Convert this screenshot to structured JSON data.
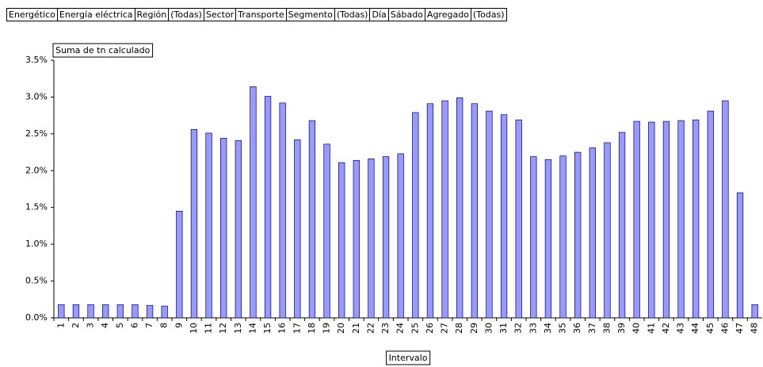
{
  "filters": [
    {
      "field": "Energético",
      "value": "Energía eléctrica"
    },
    {
      "field": "Región",
      "value": "(Todas)"
    },
    {
      "field": "Sector",
      "value": "Transporte"
    },
    {
      "field": "Segmento",
      "value": "(Todas)"
    },
    {
      "field": "Día",
      "value": "Sábado"
    },
    {
      "field": "Agregado",
      "value": "(Todas)"
    }
  ],
  "chart_data": {
    "type": "bar",
    "series_label": "Suma de tn calculado",
    "x_label": "Intervalo",
    "categories": [
      "1",
      "2",
      "3",
      "4",
      "5",
      "6",
      "7",
      "8",
      "9",
      "10",
      "11",
      "12",
      "13",
      "14",
      "15",
      "16",
      "17",
      "18",
      "19",
      "20",
      "21",
      "22",
      "23",
      "24",
      "25",
      "26",
      "27",
      "28",
      "29",
      "30",
      "31",
      "32",
      "33",
      "34",
      "35",
      "36",
      "37",
      "38",
      "39",
      "40",
      "41",
      "42",
      "43",
      "44",
      "45",
      "46",
      "47",
      "48"
    ],
    "values": [
      0.18,
      0.18,
      0.18,
      0.18,
      0.18,
      0.18,
      0.17,
      0.16,
      1.45,
      2.56,
      2.51,
      2.44,
      2.41,
      3.14,
      3.01,
      2.92,
      2.42,
      2.68,
      2.36,
      2.11,
      2.14,
      2.16,
      2.19,
      2.23,
      2.79,
      2.91,
      2.95,
      2.99,
      2.91,
      2.81,
      2.76,
      2.69,
      2.19,
      2.15,
      2.2,
      2.25,
      2.31,
      2.38,
      2.52,
      2.67,
      2.66,
      2.67,
      2.68,
      2.69,
      2.81,
      2.95,
      1.7,
      0.18
    ],
    "color": "#9999ff",
    "ylim": [
      0,
      3.5
    ],
    "yticks": [
      {
        "value": 0,
        "label": "0.0%"
      },
      {
        "value": 0.5,
        "label": "0.5%"
      },
      {
        "value": 1,
        "label": "1.0%"
      },
      {
        "value": 1.5,
        "label": "1.5%"
      },
      {
        "value": 2,
        "label": "2.0%"
      },
      {
        "value": 2.5,
        "label": "2.5%"
      },
      {
        "value": 3,
        "label": "3.0%"
      },
      {
        "value": 3.5,
        "label": "3.5%"
      }
    ]
  }
}
